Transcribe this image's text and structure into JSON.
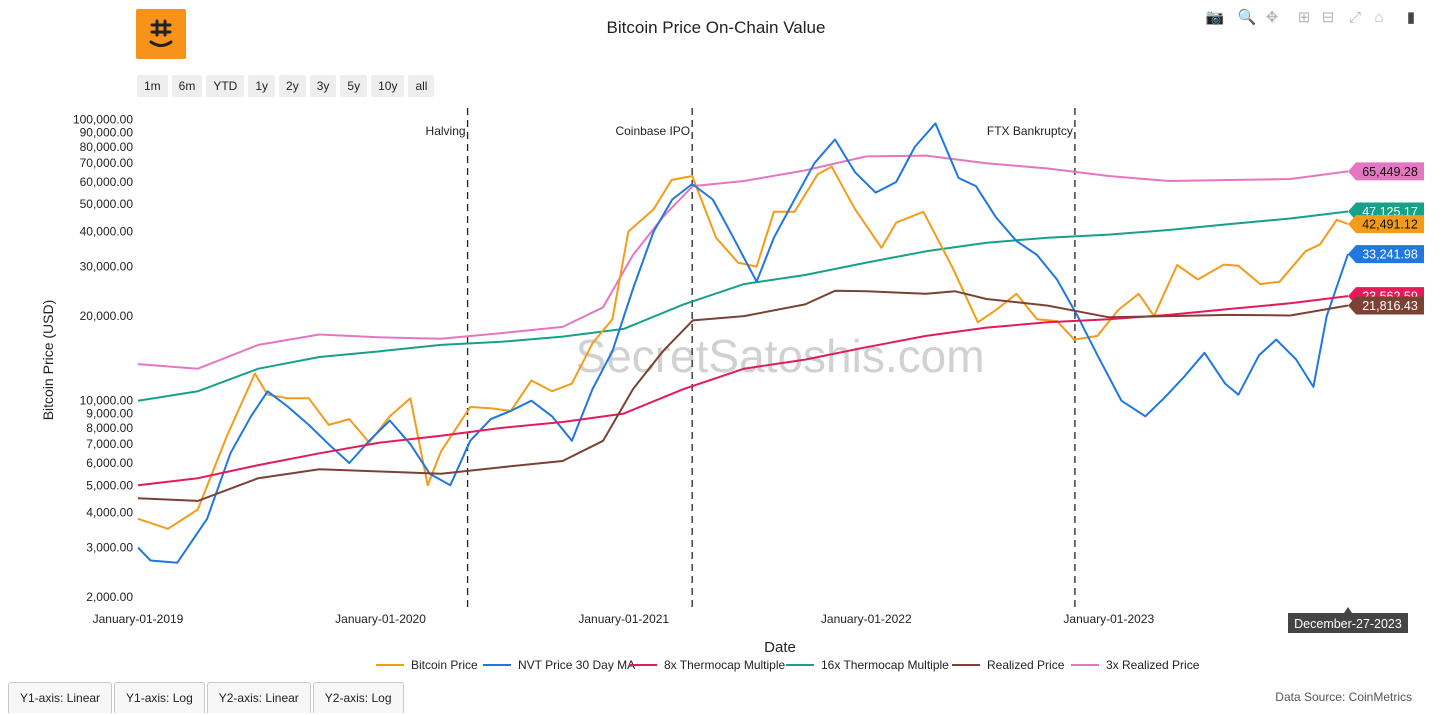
{
  "header": {
    "title": "Bitcoin Price On-Chain Value",
    "logo_icon": "bitcoin-logo-icon"
  },
  "modebar": [
    {
      "name": "camera-icon",
      "glyph": "📷"
    },
    {
      "name": "zoom-icon",
      "glyph": "🔍"
    },
    {
      "name": "pan-icon",
      "glyph": "✥"
    },
    {
      "name": "zoom-in-icon",
      "glyph": "⊞"
    },
    {
      "name": "zoom-out-icon",
      "glyph": "⊟"
    },
    {
      "name": "autoscale-icon",
      "glyph": "⤢"
    },
    {
      "name": "home-icon",
      "glyph": "⌂"
    },
    {
      "name": "plotly-logo-icon",
      "glyph": "▮"
    }
  ],
  "range_buttons": [
    "1m",
    "6m",
    "YTD",
    "1y",
    "2y",
    "3y",
    "5y",
    "10y",
    "all"
  ],
  "bottom_tabs": [
    "Y1-axis: Linear",
    "Y1-axis: Log",
    "Y2-axis: Linear",
    "Y2-axis: Log"
  ],
  "footer": {
    "source": "Data Source: CoinMetrics"
  },
  "watermark": "SecretSatoshis.com",
  "chart_data": {
    "type": "line",
    "title": "Bitcoin Price On-Chain Value",
    "xlabel": "Date",
    "ylabel": "Bitcoin Price (USD)",
    "y_scale": "log",
    "ylim": [
      1800,
      110000
    ],
    "xlim": [
      "2019-01-01",
      "2023-12-27"
    ],
    "x_ticks": [
      "January-01-2019",
      "January-01-2020",
      "January-01-2021",
      "January-01-2022",
      "January-01-2023"
    ],
    "x_tick_dates": [
      "2019-01-01",
      "2020-01-01",
      "2021-01-01",
      "2022-01-01",
      "2023-01-01"
    ],
    "y_ticks": [
      {
        "v": 100000,
        "label": "100,000.00"
      },
      {
        "v": 90000,
        "label": "90,000.00"
      },
      {
        "v": 80000,
        "label": "80,000.00"
      },
      {
        "v": 70000,
        "label": "70,000.00"
      },
      {
        "v": 60000,
        "label": "60,000.00"
      },
      {
        "v": 50000,
        "label": "50,000.00"
      },
      {
        "v": 40000,
        "label": "40,000.00"
      },
      {
        "v": 30000,
        "label": "30,000.00"
      },
      {
        "v": 20000,
        "label": "20,000.00"
      },
      {
        "v": 10000,
        "label": "10,000.00"
      },
      {
        "v": 9000,
        "label": "9,000.00"
      },
      {
        "v": 8000,
        "label": "8,000.00"
      },
      {
        "v": 7000,
        "label": "7,000.00"
      },
      {
        "v": 6000,
        "label": "6,000.00"
      },
      {
        "v": 5000,
        "label": "5,000.00"
      },
      {
        "v": 4000,
        "label": "4,000.00"
      },
      {
        "v": 3000,
        "label": "3,000.00"
      },
      {
        "v": 2000,
        "label": "2,000.00"
      }
    ],
    "hover_label": "December-27-2023",
    "legend_position": "bottom",
    "events": [
      {
        "label": "Halving",
        "date": "2020-05-11"
      },
      {
        "label": "Coinbase IPO",
        "date": "2021-04-14"
      },
      {
        "label": "FTX Bankruptcy",
        "date": "2022-11-11"
      }
    ],
    "series": [
      {
        "name": "3x Realized Price",
        "color": "#e377c2",
        "last_label": "65,449.28",
        "points": [
          [
            "2019-01-01",
            13500
          ],
          [
            "2019-04-01",
            13000
          ],
          [
            "2019-07-01",
            15800
          ],
          [
            "2019-10-01",
            17200
          ],
          [
            "2020-01-01",
            16800
          ],
          [
            "2020-04-01",
            16600
          ],
          [
            "2020-07-01",
            17400
          ],
          [
            "2020-10-01",
            18300
          ],
          [
            "2020-12-01",
            21500
          ],
          [
            "2021-01-15",
            33000
          ],
          [
            "2021-03-01",
            45000
          ],
          [
            "2021-04-15",
            58000
          ],
          [
            "2021-07-01",
            60500
          ],
          [
            "2021-10-01",
            66000
          ],
          [
            "2022-01-01",
            74000
          ],
          [
            "2022-04-01",
            74500
          ],
          [
            "2022-07-01",
            70000
          ],
          [
            "2022-10-01",
            67000
          ],
          [
            "2023-01-01",
            63000
          ],
          [
            "2023-04-01",
            60500
          ],
          [
            "2023-07-01",
            61000
          ],
          [
            "2023-10-01",
            61500
          ],
          [
            "2023-12-27",
            65449.28
          ]
        ]
      },
      {
        "name": "16x Thermocap Multiple",
        "color": "#17a08a",
        "last_label": "47,125.17",
        "points": [
          [
            "2019-01-01",
            10000
          ],
          [
            "2019-04-01",
            10800
          ],
          [
            "2019-07-01",
            13000
          ],
          [
            "2019-10-01",
            14300
          ],
          [
            "2020-01-01",
            15000
          ],
          [
            "2020-04-01",
            15800
          ],
          [
            "2020-07-01",
            16200
          ],
          [
            "2020-10-01",
            16900
          ],
          [
            "2021-01-01",
            18000
          ],
          [
            "2021-04-01",
            22000
          ],
          [
            "2021-07-01",
            26000
          ],
          [
            "2021-10-01",
            28000
          ],
          [
            "2022-01-01",
            31000
          ],
          [
            "2022-04-01",
            34000
          ],
          [
            "2022-07-01",
            36500
          ],
          [
            "2022-10-01",
            38000
          ],
          [
            "2023-01-01",
            39000
          ],
          [
            "2023-04-01",
            40500
          ],
          [
            "2023-07-01",
            42500
          ],
          [
            "2023-10-01",
            44500
          ],
          [
            "2023-12-27",
            47125.17
          ]
        ]
      },
      {
        "name": "Bitcoin Price",
        "color": "#f39c19",
        "last_label": "42,491.12",
        "points": [
          [
            "2019-01-01",
            3800
          ],
          [
            "2019-02-15",
            3500
          ],
          [
            "2019-04-01",
            4100
          ],
          [
            "2019-05-15",
            7500
          ],
          [
            "2019-06-26",
            12500
          ],
          [
            "2019-07-15",
            10500
          ],
          [
            "2019-08-15",
            10200
          ],
          [
            "2019-09-15",
            10200
          ],
          [
            "2019-10-15",
            8200
          ],
          [
            "2019-11-15",
            8600
          ],
          [
            "2019-12-15",
            7100
          ],
          [
            "2020-01-15",
            8800
          ],
          [
            "2020-02-15",
            10200
          ],
          [
            "2020-03-12",
            5000
          ],
          [
            "2020-04-01",
            6600
          ],
          [
            "2020-05-15",
            9500
          ],
          [
            "2020-06-15",
            9400
          ],
          [
            "2020-07-15",
            9200
          ],
          [
            "2020-08-15",
            11800
          ],
          [
            "2020-09-15",
            10800
          ],
          [
            "2020-10-15",
            11500
          ],
          [
            "2020-11-15",
            16000
          ],
          [
            "2020-12-15",
            19500
          ],
          [
            "2021-01-08",
            40000
          ],
          [
            "2021-02-15",
            48000
          ],
          [
            "2021-03-14",
            61000
          ],
          [
            "2021-04-14",
            63000
          ],
          [
            "2021-05-20",
            38000
          ],
          [
            "2021-06-22",
            31000
          ],
          [
            "2021-07-20",
            30000
          ],
          [
            "2021-08-15",
            47000
          ],
          [
            "2021-09-15",
            47000
          ],
          [
            "2021-10-20",
            64000
          ],
          [
            "2021-11-10",
            68000
          ],
          [
            "2021-12-15",
            48000
          ],
          [
            "2022-01-24",
            35000
          ],
          [
            "2022-02-15",
            43000
          ],
          [
            "2022-03-28",
            47000
          ],
          [
            "2022-05-10",
            30000
          ],
          [
            "2022-06-18",
            19000
          ],
          [
            "2022-07-15",
            21000
          ],
          [
            "2022-08-15",
            24000
          ],
          [
            "2022-09-15",
            19500
          ],
          [
            "2022-10-15",
            19200
          ],
          [
            "2022-11-10",
            16500
          ],
          [
            "2022-12-15",
            17000
          ],
          [
            "2023-01-15",
            21000
          ],
          [
            "2023-02-15",
            24000
          ],
          [
            "2023-03-10",
            20000
          ],
          [
            "2023-04-14",
            30400
          ],
          [
            "2023-05-15",
            27000
          ],
          [
            "2023-06-23",
            30500
          ],
          [
            "2023-07-15",
            30200
          ],
          [
            "2023-08-17",
            26000
          ],
          [
            "2023-09-15",
            26500
          ],
          [
            "2023-10-24",
            34000
          ],
          [
            "2023-11-15",
            36000
          ],
          [
            "2023-12-10",
            44000
          ],
          [
            "2023-12-27",
            42491.12
          ]
        ]
      },
      {
        "name": "NVT Price 30 Day MA",
        "color": "#1f77e0",
        "last_label": "33,241.98",
        "points": [
          [
            "2019-01-01",
            3000
          ],
          [
            "2019-01-20",
            2700
          ],
          [
            "2019-03-01",
            2650
          ],
          [
            "2019-04-15",
            3800
          ],
          [
            "2019-05-20",
            6500
          ],
          [
            "2019-06-20",
            8800
          ],
          [
            "2019-07-15",
            10800
          ],
          [
            "2019-08-15",
            9500
          ],
          [
            "2019-09-15",
            8200
          ],
          [
            "2019-10-15",
            7000
          ],
          [
            "2019-11-15",
            6000
          ],
          [
            "2019-12-15",
            7200
          ],
          [
            "2020-01-15",
            8500
          ],
          [
            "2020-02-15",
            7000
          ],
          [
            "2020-03-15",
            5500
          ],
          [
            "2020-04-15",
            5000
          ],
          [
            "2020-05-15",
            7200
          ],
          [
            "2020-06-15",
            8600
          ],
          [
            "2020-07-15",
            9200
          ],
          [
            "2020-08-15",
            10000
          ],
          [
            "2020-09-15",
            8800
          ],
          [
            "2020-10-15",
            7200
          ],
          [
            "2020-11-15",
            11000
          ],
          [
            "2020-12-15",
            15000
          ],
          [
            "2021-01-15",
            25000
          ],
          [
            "2021-02-15",
            40000
          ],
          [
            "2021-03-15",
            52000
          ],
          [
            "2021-04-14",
            59000
          ],
          [
            "2021-05-15",
            52000
          ],
          [
            "2021-06-15",
            38000
          ],
          [
            "2021-07-20",
            26500
          ],
          [
            "2021-08-15",
            38000
          ],
          [
            "2021-09-15",
            52000
          ],
          [
            "2021-10-15",
            70000
          ],
          [
            "2021-11-15",
            85000
          ],
          [
            "2021-12-15",
            65000
          ],
          [
            "2022-01-15",
            55000
          ],
          [
            "2022-02-15",
            60000
          ],
          [
            "2022-03-15",
            80000
          ],
          [
            "2022-04-15",
            97000
          ],
          [
            "2022-05-20",
            62000
          ],
          [
            "2022-06-15",
            58000
          ],
          [
            "2022-07-15",
            45000
          ],
          [
            "2022-08-15",
            37000
          ],
          [
            "2022-09-15",
            33000
          ],
          [
            "2022-10-15",
            27000
          ],
          [
            "2022-11-15",
            20000
          ],
          [
            "2022-12-15",
            14500
          ],
          [
            "2023-01-20",
            10000
          ],
          [
            "2023-02-25",
            8800
          ],
          [
            "2023-03-25",
            10200
          ],
          [
            "2023-04-25",
            12200
          ],
          [
            "2023-05-25",
            14800
          ],
          [
            "2023-06-25",
            11500
          ],
          [
            "2023-07-15",
            10500
          ],
          [
            "2023-08-15",
            14500
          ],
          [
            "2023-09-10",
            16500
          ],
          [
            "2023-10-10",
            14000
          ],
          [
            "2023-11-05",
            11200
          ],
          [
            "2023-11-25",
            20000
          ],
          [
            "2023-12-27",
            33241.98
          ]
        ]
      },
      {
        "name": "8x Thermocap Multiple",
        "color": "#e41a5a",
        "last_label": "23,562.59",
        "points": [
          [
            "2019-01-01",
            5000
          ],
          [
            "2019-04-01",
            5300
          ],
          [
            "2019-07-01",
            5900
          ],
          [
            "2019-10-01",
            6500
          ],
          [
            "2020-01-01",
            7100
          ],
          [
            "2020-04-01",
            7500
          ],
          [
            "2020-07-01",
            8000
          ],
          [
            "2020-10-01",
            8400
          ],
          [
            "2021-01-01",
            9000
          ],
          [
            "2021-04-01",
            11000
          ],
          [
            "2021-07-01",
            13000
          ],
          [
            "2021-10-01",
            14000
          ],
          [
            "2022-01-01",
            15500
          ],
          [
            "2022-04-01",
            17000
          ],
          [
            "2022-07-01",
            18200
          ],
          [
            "2022-10-01",
            19000
          ],
          [
            "2023-01-01",
            19500
          ],
          [
            "2023-04-01",
            20200
          ],
          [
            "2023-07-01",
            21200
          ],
          [
            "2023-10-01",
            22200
          ],
          [
            "2023-12-27",
            23562.59
          ]
        ]
      },
      {
        "name": "Realized Price",
        "color": "#7b4233",
        "last_label": "21,816.43",
        "points": [
          [
            "2019-01-01",
            4500
          ],
          [
            "2019-04-01",
            4400
          ],
          [
            "2019-07-01",
            5300
          ],
          [
            "2019-10-01",
            5700
          ],
          [
            "2020-01-01",
            5600
          ],
          [
            "2020-04-01",
            5500
          ],
          [
            "2020-07-01",
            5800
          ],
          [
            "2020-10-01",
            6100
          ],
          [
            "2020-12-01",
            7200
          ],
          [
            "2021-01-15",
            11000
          ],
          [
            "2021-03-01",
            15000
          ],
          [
            "2021-04-15",
            19300
          ],
          [
            "2021-07-01",
            20000
          ],
          [
            "2021-10-01",
            22000
          ],
          [
            "2021-11-15",
            24600
          ],
          [
            "2022-01-01",
            24500
          ],
          [
            "2022-04-01",
            24000
          ],
          [
            "2022-05-15",
            24500
          ],
          [
            "2022-07-01",
            23000
          ],
          [
            "2022-10-01",
            21800
          ],
          [
            "2022-11-15",
            20800
          ],
          [
            "2023-01-01",
            19800
          ],
          [
            "2023-04-01",
            20000
          ],
          [
            "2023-07-01",
            20200
          ],
          [
            "2023-10-01",
            20100
          ],
          [
            "2023-12-27",
            21816.43
          ]
        ]
      }
    ],
    "legend": [
      "Bitcoin Price",
      "NVT Price 30 Day MA",
      "8x Thermocap Multiple",
      "16x Thermocap Multiple",
      "Realized Price",
      "3x Realized Price"
    ]
  }
}
